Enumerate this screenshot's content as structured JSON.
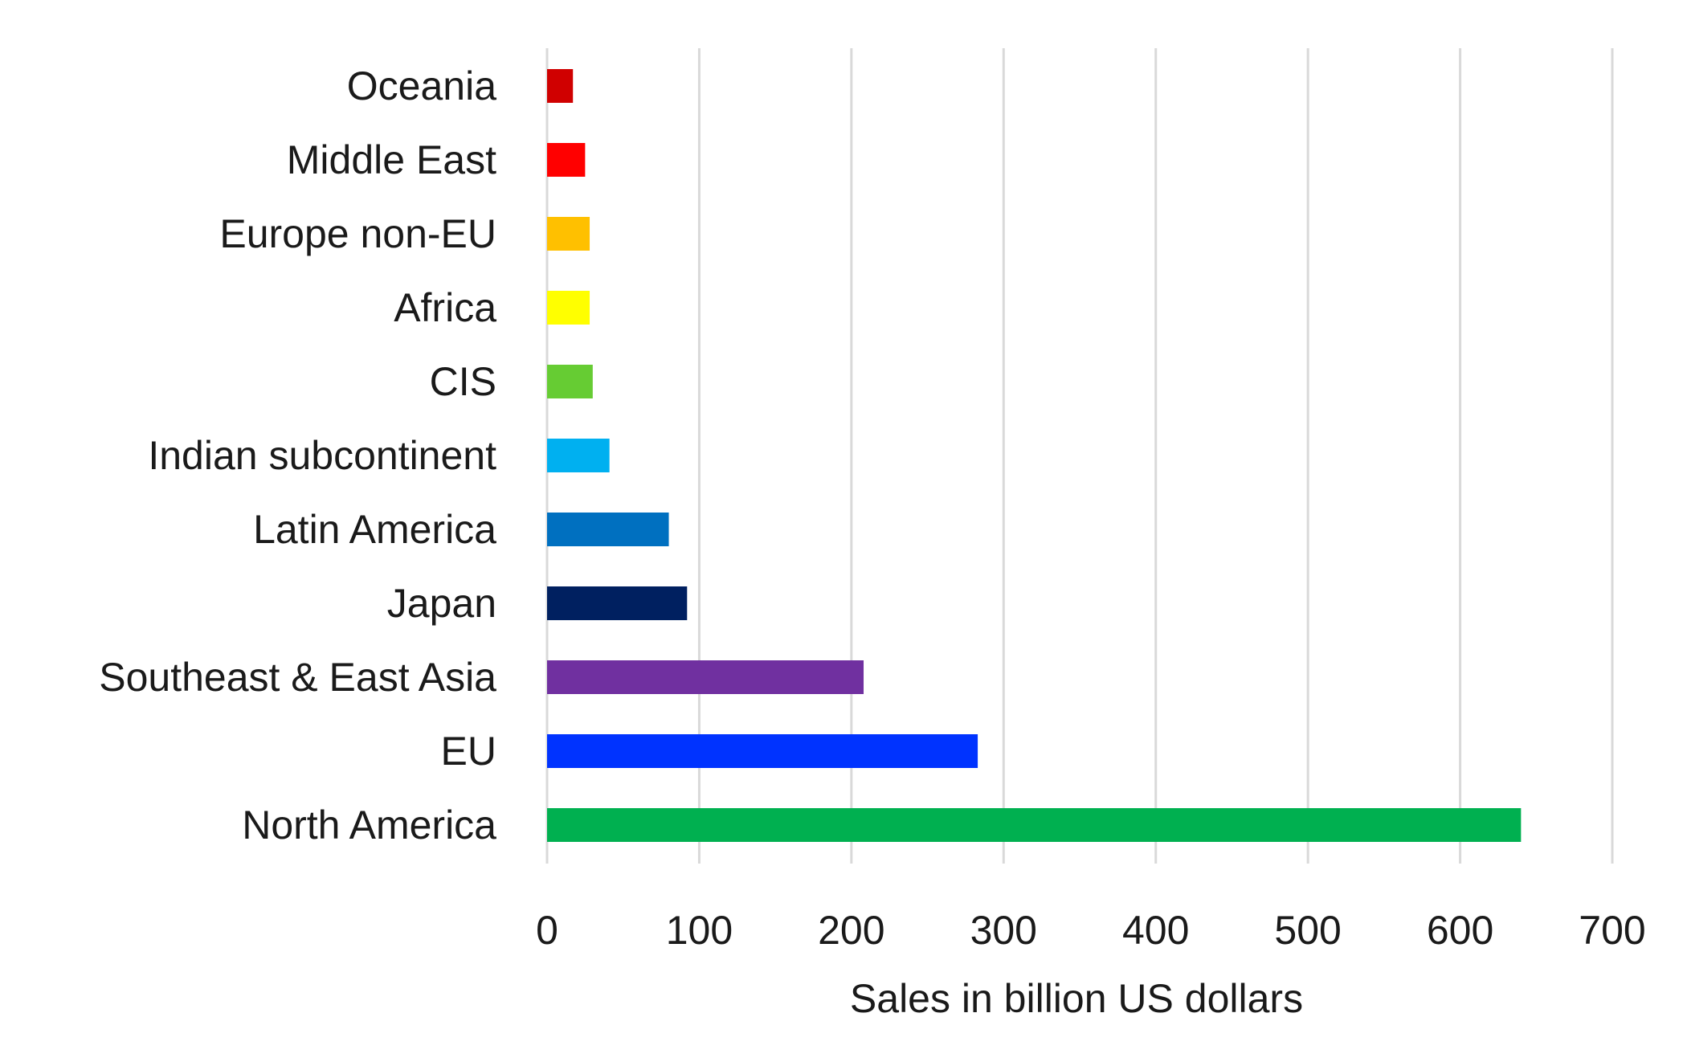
{
  "chart_data": {
    "type": "bar",
    "orientation": "horizontal",
    "title": "",
    "xlabel": "Sales in billion US dollars",
    "ylabel": "",
    "xlim": [
      0,
      700
    ],
    "xticks": [
      0,
      100,
      200,
      300,
      400,
      500,
      600,
      700
    ],
    "grid": "vertical",
    "legend": "none",
    "categories": [
      "Oceania",
      "Middle East",
      "Europe non-EU",
      "Africa",
      "CIS",
      "Indian subcontinent",
      "Latin America",
      "Japan",
      "Southeast & East Asia",
      "EU",
      "North America"
    ],
    "values": [
      17,
      25,
      28,
      28,
      30,
      41,
      80,
      92,
      208,
      283,
      640
    ],
    "colors": [
      "#d00000",
      "#ff0000",
      "#ffc000",
      "#ffff00",
      "#66cc33",
      "#00b0f0",
      "#0070c0",
      "#002060",
      "#7030a0",
      "#0033ff",
      "#00b050"
    ]
  }
}
